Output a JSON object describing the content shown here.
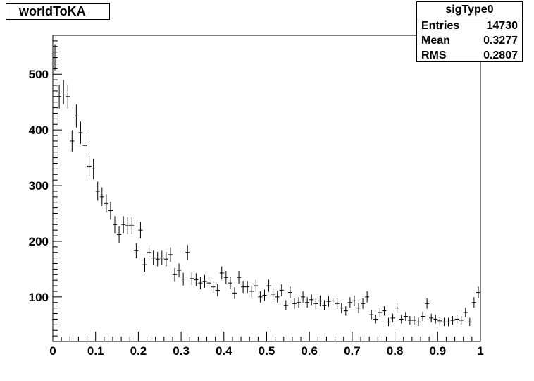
{
  "chart_data": {
    "type": "scatter",
    "title": "worldToKA",
    "xlabel": "",
    "ylabel": "",
    "xlim": [
      0,
      1
    ],
    "ylim": [
      20,
      570
    ],
    "x_ticks": [
      0,
      0.1,
      0.2,
      0.3,
      0.4,
      0.5,
      0.6,
      0.7,
      0.8,
      0.9,
      1
    ],
    "x_tick_labels": [
      "0",
      "0.1",
      "0.2",
      "0.3",
      "0.4",
      "0.5",
      "0.6",
      "0.7",
      "0.8",
      "0.9",
      "1"
    ],
    "y_ticks": [
      100,
      200,
      300,
      400,
      500
    ],
    "y_tick_labels": [
      "100",
      "200",
      "300",
      "400",
      "500"
    ],
    "bin_width": 0.01,
    "series": [
      {
        "x": [
          0.005,
          0.015,
          0.025,
          0.035,
          0.045,
          0.055,
          0.065,
          0.075,
          0.085,
          0.095,
          0.105,
          0.115,
          0.125,
          0.135,
          0.145,
          0.155,
          0.165,
          0.175,
          0.185,
          0.195,
          0.205,
          0.215,
          0.225,
          0.235,
          0.245,
          0.255,
          0.265,
          0.275,
          0.285,
          0.295,
          0.305,
          0.315,
          0.325,
          0.335,
          0.345,
          0.355,
          0.365,
          0.375,
          0.385,
          0.395,
          0.405,
          0.415,
          0.425,
          0.435,
          0.445,
          0.455,
          0.465,
          0.475,
          0.485,
          0.495,
          0.505,
          0.515,
          0.525,
          0.535,
          0.545,
          0.555,
          0.565,
          0.575,
          0.585,
          0.595,
          0.605,
          0.615,
          0.625,
          0.635,
          0.645,
          0.655,
          0.665,
          0.675,
          0.685,
          0.695,
          0.705,
          0.715,
          0.725,
          0.735,
          0.745,
          0.755,
          0.765,
          0.775,
          0.785,
          0.795,
          0.805,
          0.815,
          0.825,
          0.835,
          0.845,
          0.855,
          0.865,
          0.875,
          0.885,
          0.895,
          0.905,
          0.915,
          0.925,
          0.935,
          0.945,
          0.955,
          0.965,
          0.975,
          0.985,
          0.995
        ],
        "y": [
          530,
          460,
          468,
          460,
          380,
          425,
          395,
          372,
          335,
          330,
          290,
          280,
          268,
          255,
          230,
          212,
          230,
          228,
          228,
          183,
          220,
          158,
          180,
          170,
          168,
          170,
          168,
          176,
          140,
          148,
          132,
          180,
          133,
          131,
          125,
          128,
          125,
          118,
          112,
          143,
          135,
          125,
          107,
          135,
          118,
          118,
          110,
          120,
          100,
          103,
          120,
          105,
          100,
          112,
          85,
          108,
          88,
          90,
          100,
          90,
          95,
          88,
          93,
          85,
          92,
          93,
          88,
          80,
          75,
          90,
          93,
          80,
          88,
          100,
          68,
          60,
          72,
          75,
          55,
          62,
          80,
          60,
          65,
          58,
          58,
          55,
          65,
          88,
          62,
          60,
          57,
          55,
          55,
          58,
          60,
          58,
          72,
          55,
          90,
          108
        ]
      }
    ]
  },
  "stats": {
    "title": "sigType0",
    "rows": [
      {
        "key": "Entries",
        "value": "14730"
      },
      {
        "key": "Mean",
        "value": "0.3277"
      },
      {
        "key": "RMS",
        "value": "0.2807"
      }
    ]
  }
}
